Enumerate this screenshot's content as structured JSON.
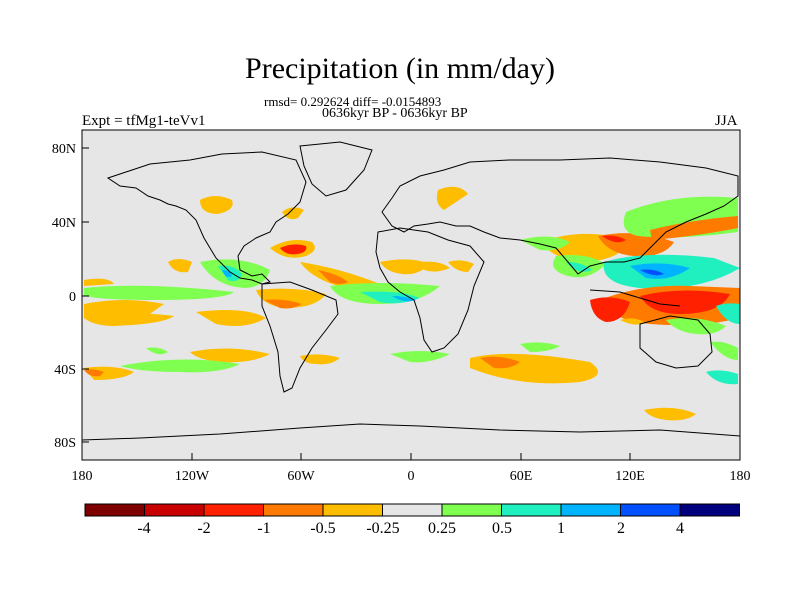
{
  "title": "Precipitation (in mm/day)",
  "subtitle": "rmsd= 0.292624 diff= -0.0154893",
  "subtitle2": "0636kyr BP - 0636kyr BP",
  "left_label": "Expt = tfMg1-teVv1",
  "right_label": "JJA",
  "colors": {
    "background_field": "#e6e6e6",
    "coastline": "#000000"
  },
  "map": {
    "lat_ticks": [
      "80N",
      "40N",
      "0",
      "40S",
      "80S"
    ],
    "lon_ticks": [
      "180",
      "120W",
      "60W",
      "0",
      "60E",
      "120E",
      "180"
    ]
  },
  "colorbar": {
    "colors": [
      "#7f0000",
      "#c80000",
      "#ff2000",
      "#ff7a00",
      "#ffbd00",
      "#e6e6e6",
      "#7fff50",
      "#20f0c0",
      "#00b4ff",
      "#0050ff",
      "#00007f"
    ],
    "labels": [
      "-4",
      "-2",
      "-1",
      "-0.5",
      "-0.25",
      "0.25",
      "0.5",
      "1",
      "2",
      "4"
    ]
  }
}
